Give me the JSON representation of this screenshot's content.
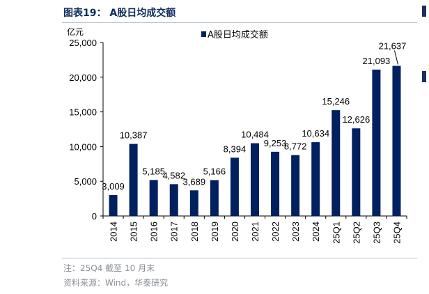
{
  "figure": {
    "title": "图表19：  A股日均成交额",
    "note": "注：25Q4 截至 10 月末",
    "source": "资料来源：Wind，华泰研究"
  },
  "colors": {
    "bar": "#002060",
    "axis": "#000000",
    "title": "#0d2b5c"
  },
  "chart_data": {
    "type": "bar",
    "title": "",
    "ylabel": "亿元",
    "xlabel": "",
    "ylim": [
      0,
      25000
    ],
    "yticks": [
      0,
      5000,
      10000,
      15000,
      20000,
      25000
    ],
    "ytick_labels": [
      "0",
      "5,000",
      "10,000",
      "15,000",
      "20,000",
      "25,000"
    ],
    "grid": false,
    "legend_position": "top-center",
    "categories": [
      "2014",
      "2015",
      "2016",
      "2017",
      "2018",
      "2019",
      "2020",
      "2021",
      "2022",
      "2023",
      "2024",
      "25Q1",
      "25Q2",
      "25Q3",
      "25Q4"
    ],
    "series": [
      {
        "name": "A股日均成交额",
        "values": [
          3009,
          10387,
          5185,
          4582,
          3689,
          5166,
          8394,
          10484,
          9253,
          8772,
          10634,
          15246,
          12626,
          21093,
          21637
        ],
        "labels": [
          "3,009",
          "10,387",
          "5,185",
          "4,582",
          "3,689",
          "5,166",
          "8,394",
          "10,484",
          "9,253",
          "8,772",
          "10,634",
          "15,246",
          "12,626",
          "21,093",
          "21,637"
        ]
      }
    ]
  }
}
